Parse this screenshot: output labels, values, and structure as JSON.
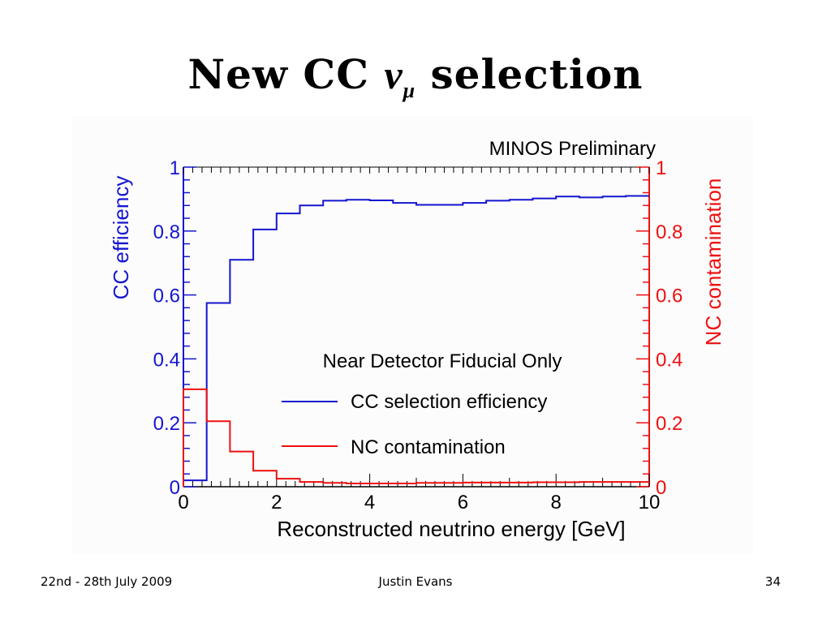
{
  "slide": {
    "title_prefix": "New CC ",
    "title_nu": "ν",
    "title_sub": "μ",
    "title_suffix": " selection",
    "footer_left": "22nd - 28th July 2009",
    "footer_center": "Justin Evans",
    "footer_right": "34"
  },
  "chart_data": {
    "type": "line",
    "title": "MINOS Preliminary",
    "annotation": "Near Detector Fiducial Only",
    "xlabel": "Reconstructed neutrino energy [GeV]",
    "ylabel_left": "CC efficiency",
    "ylabel_right": "NC contamination",
    "xlim": [
      0,
      10
    ],
    "ylim": [
      0,
      1
    ],
    "x_ticks": [
      "0",
      "2",
      "4",
      "6",
      "8",
      "10"
    ],
    "y_ticks": [
      "0",
      "0.2",
      "0.4",
      "0.6",
      "0.8",
      "1"
    ],
    "grid": false,
    "legend_position": "center-right",
    "colors": {
      "cc": "#1515d0",
      "nc": "#ee1010"
    },
    "bin_edges": [
      0,
      0.5,
      1,
      1.5,
      2,
      2.5,
      3,
      3.5,
      4,
      4.5,
      5,
      5.5,
      6,
      6.5,
      7,
      7.5,
      8,
      8.5,
      9,
      9.5,
      10
    ],
    "series": [
      {
        "name": "CC selection efficiency",
        "values": [
          0.02,
          0.575,
          0.71,
          0.805,
          0.855,
          0.88,
          0.895,
          0.898,
          0.896,
          0.888,
          0.882,
          0.882,
          0.888,
          0.895,
          0.898,
          0.902,
          0.908,
          0.905,
          0.908,
          0.91
        ]
      },
      {
        "name": "NC contamination",
        "values": [
          0.305,
          0.205,
          0.11,
          0.05,
          0.025,
          0.015,
          0.012,
          0.01,
          0.01,
          0.01,
          0.012,
          0.012,
          0.013,
          0.013,
          0.013,
          0.014,
          0.014,
          0.015,
          0.015,
          0.015
        ]
      }
    ]
  }
}
